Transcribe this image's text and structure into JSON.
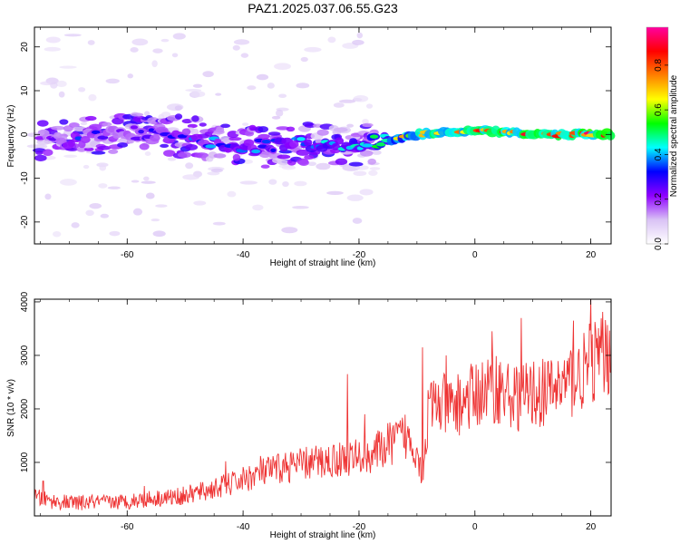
{
  "title": "PAZ1.2025.037.06.55.G23",
  "chart_data": [
    {
      "type": "heatmap",
      "xlabel": "Height of straight line (km)",
      "ylabel": "Frequency (Hz)",
      "xlim": [
        -76,
        23.5
      ],
      "ylim": [
        -25,
        24.5
      ],
      "xticks": [
        -60,
        -40,
        -20,
        0,
        20
      ],
      "yticks": [
        -20,
        -10,
        0,
        10,
        20
      ],
      "colorbar": {
        "label": "Normalized spectral amplitude",
        "range": [
          0,
          0.97
        ],
        "ticks": [
          0.0,
          0.2,
          0.4,
          0.6,
          0.8
        ],
        "colormap": [
          "#ffffff",
          "#d9c2f5",
          "#8f00ff",
          "#0000ff",
          "#00ffff",
          "#00ff00",
          "#ffff00",
          "#ff8000",
          "#ff0000",
          "#ff00a0"
        ]
      },
      "ridge": [
        {
          "x": -74,
          "f": -1.0,
          "amp": 0.25
        },
        {
          "x": -70,
          "f": -1.5,
          "amp": 0.35
        },
        {
          "x": -65,
          "f": -0.5,
          "amp": 0.3
        },
        {
          "x": -60,
          "f": 0.5,
          "amp": 0.3
        },
        {
          "x": -55,
          "f": 0.0,
          "amp": 0.3
        },
        {
          "x": -50,
          "f": -0.5,
          "amp": 0.35
        },
        {
          "x": -45,
          "f": -1.5,
          "amp": 0.4
        },
        {
          "x": -40,
          "f": -2.5,
          "amp": 0.4
        },
        {
          "x": -35,
          "f": -3.0,
          "amp": 0.4
        },
        {
          "x": -30,
          "f": -2.0,
          "amp": 0.45
        },
        {
          "x": -25,
          "f": -2.5,
          "amp": 0.45
        },
        {
          "x": -20,
          "f": -2.5,
          "amp": 0.5
        },
        {
          "x": -15,
          "f": -1.5,
          "amp": 0.6
        },
        {
          "x": -10,
          "f": 0.0,
          "amp": 0.75
        },
        {
          "x": -5,
          "f": 0.5,
          "amp": 0.85
        },
        {
          "x": 0,
          "f": 0.8,
          "amp": 0.85
        },
        {
          "x": 5,
          "f": 0.5,
          "amp": 0.85
        },
        {
          "x": 10,
          "f": 0.0,
          "amp": 0.9
        },
        {
          "x": 15,
          "f": 0.0,
          "amp": 0.9
        },
        {
          "x": 20,
          "f": 0.0,
          "amp": 0.9
        }
      ]
    },
    {
      "type": "line",
      "xlabel": "Height of straight line (km)",
      "ylabel": "SNR (10 * v/v)",
      "xlim": [
        -76,
        23.5
      ],
      "ylim": [
        0,
        4050
      ],
      "xticks": [
        -60,
        -40,
        -20,
        0,
        20
      ],
      "yticks": [
        1000,
        2000,
        3000,
        4000
      ],
      "color": "#ee3333",
      "series": [
        {
          "x": [
            -76,
            -74,
            -72,
            -70,
            -68,
            -66,
            -64,
            -62,
            -60,
            -58,
            -56,
            -54,
            -52,
            -50,
            -48,
            -46,
            -44,
            -42,
            -40,
            -38,
            -36,
            -34,
            -32,
            -30,
            -28,
            -26,
            -24,
            -22,
            -20,
            -18,
            -16,
            -14,
            -12,
            -10,
            -9,
            -8,
            -6,
            -4,
            -2,
            0,
            2,
            4,
            6,
            8,
            10,
            12,
            14,
            16,
            18,
            20,
            22,
            23.5
          ],
          "y": [
            350,
            300,
            260,
            250,
            240,
            260,
            250,
            260,
            270,
            300,
            320,
            340,
            350,
            380,
            430,
            480,
            540,
            600,
            680,
            760,
            820,
            880,
            930,
            960,
            1000,
            1020,
            1050,
            1080,
            1100,
            1150,
            1250,
            1400,
            1500,
            1250,
            700,
            2000,
            2100,
            2000,
            2150,
            2250,
            2350,
            2400,
            2250,
            2200,
            2300,
            2300,
            2400,
            2500,
            2600,
            2850,
            3000,
            3050
          ]
        }
      ],
      "peaks": [
        {
          "x": -74.5,
          "y": 650
        },
        {
          "x": -57,
          "y": 560
        },
        {
          "x": -43,
          "y": 1020
        },
        {
          "x": -37,
          "y": 1120
        },
        {
          "x": -22,
          "y": 2650
        },
        {
          "x": -19,
          "y": 1900
        },
        {
          "x": -9,
          "y": 3150
        },
        {
          "x": -5,
          "y": 3000
        },
        {
          "x": 3,
          "y": 3450
        },
        {
          "x": 8,
          "y": 3700
        },
        {
          "x": 17,
          "y": 3650
        },
        {
          "x": 20,
          "y": 4050
        }
      ]
    }
  ]
}
